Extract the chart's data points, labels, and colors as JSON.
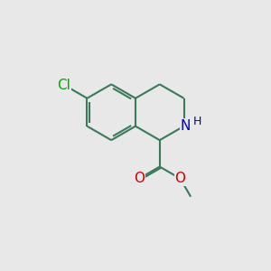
{
  "background_color": "#e8e8e8",
  "bond_color": "#3a7a5a",
  "bond_width": 1.5,
  "atom_colors": {
    "Cl": "#00aa00",
    "N": "#0000cc",
    "O": "#cc0000",
    "H": "#0000cc"
  },
  "font_size_atom": 10,
  "fig_size": [
    3.0,
    3.0
  ],
  "dpi": 100
}
